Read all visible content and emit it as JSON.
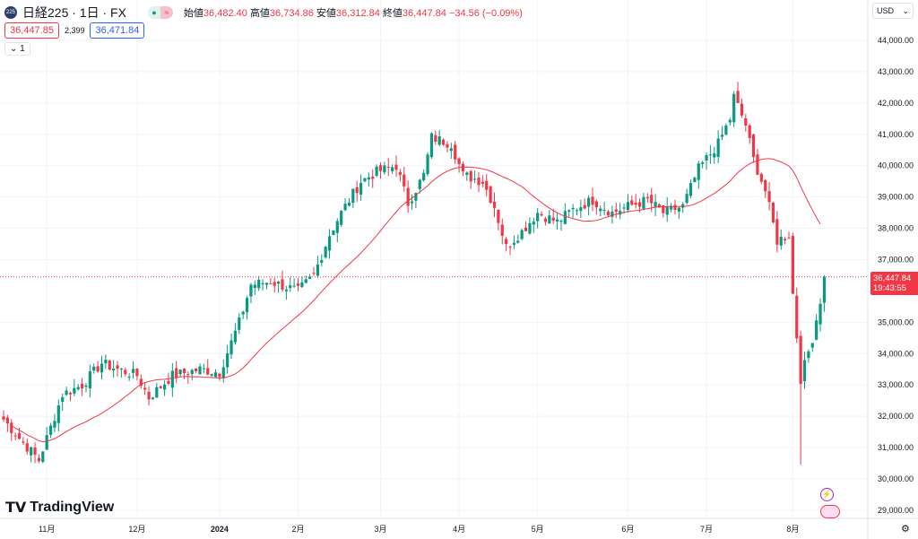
{
  "header": {
    "badge": "225",
    "title": "日経225 · 1日 · FX",
    "open_label": "始値",
    "open": "36,482.40",
    "high_label": "高値",
    "high": "36,734.86",
    "low_label": "安値",
    "low": "36,312.84",
    "close_label": "終値",
    "close": "36,447.84",
    "change": "−34.56 (−0.09%)"
  },
  "bid": "36,447.85",
  "spread": "2,399",
  "ask": "36,471.84",
  "indicator_toggle": "1",
  "currency": "USD",
  "last_price": "36,447.84",
  "countdown": "19:43:55",
  "logo": "TradingView",
  "colors": {
    "up": "#089981",
    "down": "#f23645",
    "ma": "#f23645"
  },
  "chart_data": {
    "type": "candlestick",
    "y_ticks": [
      "44,000.00",
      "43,000.00",
      "42,000.00",
      "41,000.00",
      "40,000.00",
      "39,000.00",
      "38,000.00",
      "37,000.00",
      "35,000.00",
      "34,000.00",
      "33,000.00",
      "32,000.00",
      "31,000.00",
      "30,000.00",
      "29,000.00"
    ],
    "y_tick_values": [
      44000,
      43000,
      42000,
      41000,
      40000,
      39000,
      38000,
      37000,
      35000,
      34000,
      33000,
      32000,
      31000,
      30000,
      29000
    ],
    "ylim": [
      28600,
      44600
    ],
    "x_labels": [
      "11月",
      "12月",
      "2024",
      "2月",
      "3月",
      "4月",
      "5月",
      "6月",
      "7月",
      "8月"
    ],
    "x_label_day_index": [
      11,
      34,
      55,
      75,
      96,
      116,
      136,
      159,
      179,
      201
    ],
    "close_waypoints": [
      [
        0,
        31900
      ],
      [
        4,
        31300
      ],
      [
        9,
        30600
      ],
      [
        11,
        31300
      ],
      [
        15,
        32700
      ],
      [
        20,
        33000
      ],
      [
        25,
        33700
      ],
      [
        29,
        33500
      ],
      [
        34,
        33300
      ],
      [
        37,
        32600
      ],
      [
        43,
        33300
      ],
      [
        50,
        33500
      ],
      [
        55,
        33400
      ],
      [
        60,
        35000
      ],
      [
        63,
        36200
      ],
      [
        68,
        36300
      ],
      [
        75,
        36000
      ],
      [
        79,
        36500
      ],
      [
        83,
        37800
      ],
      [
        86,
        38500
      ],
      [
        91,
        39500
      ],
      [
        95,
        39800
      ],
      [
        100,
        40000
      ],
      [
        103,
        38800
      ],
      [
        107,
        39700
      ],
      [
        109,
        40900
      ],
      [
        114,
        40700
      ],
      [
        117,
        39700
      ],
      [
        122,
        39500
      ],
      [
        125,
        38700
      ],
      [
        128,
        37400
      ],
      [
        132,
        37900
      ],
      [
        136,
        38500
      ],
      [
        141,
        38200
      ],
      [
        145,
        38600
      ],
      [
        150,
        38900
      ],
      [
        155,
        38500
      ],
      [
        159,
        38700
      ],
      [
        164,
        38900
      ],
      [
        168,
        38500
      ],
      [
        173,
        38700
      ],
      [
        177,
        39900
      ],
      [
        182,
        40700
      ],
      [
        185,
        41500
      ],
      [
        186,
        42200
      ],
      [
        189,
        41300
      ],
      [
        191,
        40200
      ],
      [
        194,
        39200
      ],
      [
        197,
        37600
      ],
      [
        200,
        37800
      ],
      [
        201,
        35900
      ],
      [
        203,
        33200
      ],
      [
        206,
        34500
      ],
      [
        208,
        35700
      ],
      [
        209,
        36447
      ]
    ],
    "ma_period": 25,
    "last": 36447.84
  }
}
